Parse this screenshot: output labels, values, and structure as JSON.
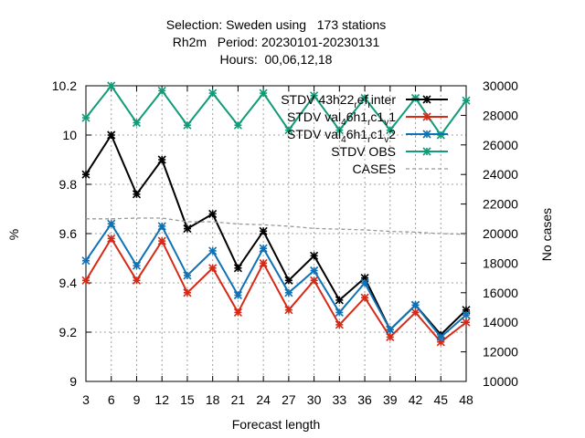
{
  "chart_data": {
    "type": "line",
    "title_lines": [
      "Selection: Sweden using   173 stations",
      "Rh2m   Period: 20230101-20230131",
      "Hours:  00,06,12,18"
    ],
    "xlabel": "Forecast length",
    "ylabel": "%",
    "y2label": "No cases",
    "x": [
      3,
      6,
      9,
      12,
      15,
      18,
      21,
      24,
      27,
      30,
      33,
      36,
      39,
      42,
      45,
      48
    ],
    "xlim": [
      3,
      48
    ],
    "ylim": [
      9.0,
      10.2
    ],
    "y2lim": [
      10000,
      30000
    ],
    "yticks": [
      "9",
      "9.2",
      "9.4",
      "9.6",
      "9.8",
      "10",
      "10.2"
    ],
    "y2ticks": [
      "10000",
      "12000",
      "14000",
      "16000",
      "18000",
      "20000",
      "22000",
      "24000",
      "26000",
      "28000",
      "30000"
    ],
    "grid": true,
    "legend_position": "top-right",
    "series": [
      {
        "name": "STDV 43h22_ef_inter",
        "name_parts": [
          [
            "STDV 43h22",
            ""
          ],
          [
            "r",
            "sub"
          ],
          [
            "ef",
            ""
          ],
          [
            "r",
            "sub"
          ],
          [
            "inter",
            ""
          ]
        ],
        "color": "#000000",
        "marker": "asterisk",
        "axis": "y",
        "values": [
          9.84,
          10.0,
          9.76,
          9.9,
          9.62,
          9.68,
          9.46,
          9.61,
          9.41,
          9.51,
          9.33,
          9.42,
          9.21,
          9.31,
          9.19,
          9.29
        ]
      },
      {
        "name": "STDV val_46h1_c1_1",
        "name_parts": [
          [
            "STDV val",
            ""
          ],
          [
            "4",
            "sub"
          ],
          [
            "6h1",
            ""
          ],
          [
            "r",
            "sub"
          ],
          [
            "c1",
            ""
          ],
          [
            "v",
            "sub"
          ],
          [
            "1",
            ""
          ]
        ],
        "color": "#d62a17",
        "marker": "asterisk",
        "axis": "y",
        "values": [
          9.41,
          9.58,
          9.41,
          9.57,
          9.36,
          9.46,
          9.28,
          9.48,
          9.29,
          9.41,
          9.23,
          9.34,
          9.18,
          9.28,
          9.16,
          9.24
        ]
      },
      {
        "name": "STDV val_46h1_c1_2",
        "name_parts": [
          [
            "STDV val",
            ""
          ],
          [
            "4",
            "sub"
          ],
          [
            "6h1",
            ""
          ],
          [
            "r",
            "sub"
          ],
          [
            "c1",
            ""
          ],
          [
            "v",
            "sub"
          ],
          [
            "2",
            ""
          ]
        ],
        "color": "#0f72b5",
        "marker": "asterisk",
        "axis": "y",
        "values": [
          9.49,
          9.64,
          9.47,
          9.63,
          9.43,
          9.53,
          9.35,
          9.54,
          9.36,
          9.45,
          9.28,
          9.4,
          9.21,
          9.31,
          9.18,
          9.27
        ]
      },
      {
        "name": "STDV OBS",
        "name_parts": [
          [
            "STDV OBS",
            ""
          ]
        ],
        "color": "#119b78",
        "marker": "asterisk",
        "axis": "y",
        "values": [
          10.07,
          10.2,
          10.05,
          10.18,
          10.04,
          10.17,
          10.04,
          10.17,
          10.02,
          10.16,
          10.02,
          10.15,
          10.02,
          10.15,
          10.0,
          10.14
        ]
      },
      {
        "name": "CASES",
        "name_parts": [
          [
            "CASES",
            ""
          ]
        ],
        "color": "#999999",
        "marker": "none",
        "dashed": true,
        "axis": "y2",
        "values": [
          21000,
          21000,
          21050,
          21050,
          20800,
          20800,
          20650,
          20600,
          20500,
          20350,
          20300,
          20250,
          20150,
          20100,
          20000,
          19950
        ]
      }
    ]
  }
}
